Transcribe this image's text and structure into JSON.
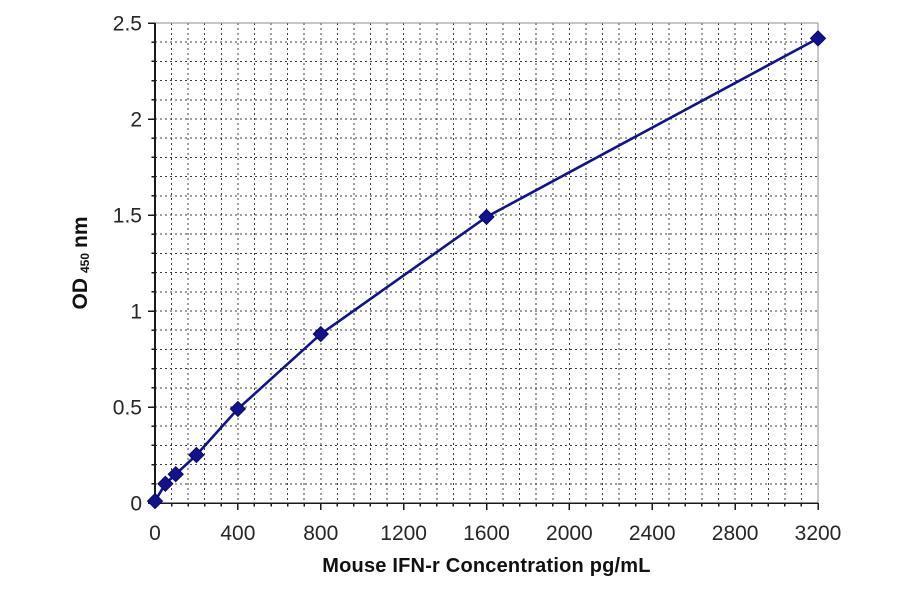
{
  "chart": {
    "y_axis_title": {
      "pre": "OD",
      "sub": "450",
      "post": "nm"
    },
    "colors": {
      "series": "#12128e",
      "series_edge": "#0a0a60",
      "grid": "#3d3d3d",
      "axis": "#1a1a1a",
      "border": "#8f8f8f",
      "text": "#262626"
    }
  },
  "chart_data": {
    "type": "line",
    "title": "",
    "xlabel": "Mouse IFN-r Concentration pg/mL",
    "ylabel": "OD 450 nm",
    "x": [
      0,
      50,
      100,
      200,
      400,
      800,
      1600,
      3200
    ],
    "y": [
      0.01,
      0.1,
      0.15,
      0.25,
      0.49,
      0.88,
      1.49,
      2.42
    ],
    "xlim": [
      0,
      3200
    ],
    "ylim": [
      0,
      2.5
    ],
    "x_major_ticks": [
      0,
      400,
      800,
      1200,
      1600,
      2000,
      2400,
      2800,
      3200
    ],
    "x_tick_labels": [
      "0",
      "400",
      "800",
      "1200",
      "1600",
      "2000",
      "2400",
      "2800",
      "3200"
    ],
    "y_major_ticks": [
      0,
      0.5,
      1,
      1.5,
      2,
      2.5
    ],
    "y_tick_labels": [
      "0",
      "0.5",
      "1",
      "1.5",
      "2",
      "2.5"
    ],
    "x_minor_step": 80,
    "y_minor_step": 0.1,
    "marker": "diamond",
    "grid": "dashed-minor-and-major",
    "legend": "none"
  }
}
